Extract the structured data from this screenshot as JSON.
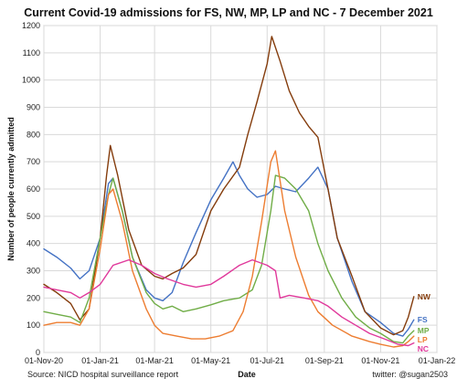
{
  "chart_data": {
    "type": "line",
    "title": "Current Covid-19 admissions for FS, NW, MP, LP and NC - 7 December 2021",
    "xlabel": "Date",
    "ylabel": "Number of people currently admitted",
    "ylim": [
      0,
      1200
    ],
    "yticks": [
      0,
      100,
      200,
      300,
      400,
      500,
      600,
      700,
      800,
      900,
      1000,
      1100,
      1200
    ],
    "xlim": [
      "2020-11-01",
      "2022-01-01"
    ],
    "xticks": [
      "2020-11-01",
      "2021-01-01",
      "2021-03-01",
      "2021-05-01",
      "2021-07-01",
      "2021-09-01",
      "2021-11-01",
      "2022-01-01"
    ],
    "xtick_labels": [
      "01-Nov-20",
      "01-Jan-21",
      "01-Mar-21",
      "01-May-21",
      "01-Jul-21",
      "01-Sep-21",
      "01-Nov-21",
      "01-Jan-22"
    ],
    "grid": true,
    "legend": "end-of-line labels",
    "series": [
      {
        "name": "FS",
        "color": "#4472C4",
        "points": [
          [
            "2020-11-01",
            380
          ],
          [
            "2020-11-15",
            350
          ],
          [
            "2020-11-30",
            310
          ],
          [
            "2020-12-10",
            270
          ],
          [
            "2020-12-20",
            300
          ],
          [
            "2021-01-01",
            420
          ],
          [
            "2021-01-10",
            620
          ],
          [
            "2021-01-15",
            640
          ],
          [
            "2021-01-25",
            520
          ],
          [
            "2021-02-05",
            350
          ],
          [
            "2021-02-20",
            230
          ],
          [
            "2021-03-01",
            200
          ],
          [
            "2021-03-10",
            190
          ],
          [
            "2021-03-20",
            220
          ],
          [
            "2021-04-01",
            330
          ],
          [
            "2021-04-15",
            440
          ],
          [
            "2021-05-01",
            560
          ],
          [
            "2021-05-15",
            640
          ],
          [
            "2021-05-25",
            700
          ],
          [
            "2021-06-01",
            650
          ],
          [
            "2021-06-10",
            600
          ],
          [
            "2021-06-20",
            570
          ],
          [
            "2021-07-01",
            580
          ],
          [
            "2021-07-10",
            610
          ],
          [
            "2021-07-20",
            600
          ],
          [
            "2021-08-01",
            590
          ],
          [
            "2021-08-15",
            640
          ],
          [
            "2021-08-25",
            680
          ],
          [
            "2021-09-05",
            600
          ],
          [
            "2021-09-15",
            420
          ],
          [
            "2021-10-01",
            260
          ],
          [
            "2021-10-15",
            150
          ],
          [
            "2021-11-01",
            110
          ],
          [
            "2021-11-15",
            70
          ],
          [
            "2021-11-25",
            60
          ],
          [
            "2021-12-01",
            85
          ],
          [
            "2021-12-07",
            120
          ]
        ]
      },
      {
        "name": "NW",
        "color": "#843C0C",
        "points": [
          [
            "2020-11-01",
            250
          ],
          [
            "2020-11-15",
            220
          ],
          [
            "2020-11-30",
            180
          ],
          [
            "2020-12-10",
            120
          ],
          [
            "2020-12-20",
            160
          ],
          [
            "2021-01-01",
            420
          ],
          [
            "2021-01-08",
            650
          ],
          [
            "2021-01-12",
            760
          ],
          [
            "2021-01-20",
            650
          ],
          [
            "2021-02-01",
            450
          ],
          [
            "2021-02-15",
            320
          ],
          [
            "2021-03-01",
            280
          ],
          [
            "2021-03-10",
            270
          ],
          [
            "2021-03-20",
            290
          ],
          [
            "2021-04-01",
            310
          ],
          [
            "2021-04-15",
            360
          ],
          [
            "2021-05-01",
            520
          ],
          [
            "2021-05-15",
            600
          ],
          [
            "2021-06-01",
            680
          ],
          [
            "2021-06-10",
            800
          ],
          [
            "2021-06-20",
            920
          ],
          [
            "2021-07-01",
            1060
          ],
          [
            "2021-07-06",
            1160
          ],
          [
            "2021-07-15",
            1070
          ],
          [
            "2021-07-25",
            960
          ],
          [
            "2021-08-05",
            880
          ],
          [
            "2021-08-15",
            830
          ],
          [
            "2021-08-25",
            790
          ],
          [
            "2021-09-05",
            600
          ],
          [
            "2021-09-15",
            420
          ],
          [
            "2021-10-01",
            280
          ],
          [
            "2021-10-15",
            150
          ],
          [
            "2021-11-01",
            90
          ],
          [
            "2021-11-15",
            65
          ],
          [
            "2021-11-25",
            80
          ],
          [
            "2021-12-01",
            130
          ],
          [
            "2021-12-07",
            205
          ]
        ]
      },
      {
        "name": "MP",
        "color": "#70AD47",
        "points": [
          [
            "2020-11-01",
            150
          ],
          [
            "2020-11-15",
            140
          ],
          [
            "2020-11-30",
            130
          ],
          [
            "2020-12-10",
            110
          ],
          [
            "2020-12-20",
            200
          ],
          [
            "2021-01-01",
            420
          ],
          [
            "2021-01-10",
            580
          ],
          [
            "2021-01-15",
            640
          ],
          [
            "2021-01-25",
            520
          ],
          [
            "2021-02-05",
            350
          ],
          [
            "2021-02-20",
            220
          ],
          [
            "2021-03-01",
            180
          ],
          [
            "2021-03-10",
            160
          ],
          [
            "2021-03-20",
            170
          ],
          [
            "2021-04-01",
            150
          ],
          [
            "2021-04-15",
            160
          ],
          [
            "2021-05-01",
            175
          ],
          [
            "2021-05-15",
            190
          ],
          [
            "2021-06-01",
            200
          ],
          [
            "2021-06-15",
            230
          ],
          [
            "2021-06-25",
            320
          ],
          [
            "2021-07-05",
            520
          ],
          [
            "2021-07-10",
            650
          ],
          [
            "2021-07-20",
            640
          ],
          [
            "2021-08-01",
            600
          ],
          [
            "2021-08-15",
            520
          ],
          [
            "2021-08-25",
            400
          ],
          [
            "2021-09-05",
            300
          ],
          [
            "2021-09-20",
            200
          ],
          [
            "2021-10-05",
            130
          ],
          [
            "2021-10-20",
            90
          ],
          [
            "2021-11-01",
            70
          ],
          [
            "2021-11-15",
            40
          ],
          [
            "2021-11-25",
            35
          ],
          [
            "2021-12-01",
            60
          ],
          [
            "2021-12-07",
            80
          ]
        ]
      },
      {
        "name": "LP",
        "color": "#ED7D31",
        "points": [
          [
            "2020-11-01",
            100
          ],
          [
            "2020-11-15",
            110
          ],
          [
            "2020-11-30",
            110
          ],
          [
            "2020-12-10",
            100
          ],
          [
            "2020-12-20",
            160
          ],
          [
            "2021-01-01",
            380
          ],
          [
            "2021-01-10",
            580
          ],
          [
            "2021-01-15",
            600
          ],
          [
            "2021-01-25",
            480
          ],
          [
            "2021-02-05",
            300
          ],
          [
            "2021-02-20",
            160
          ],
          [
            "2021-03-01",
            100
          ],
          [
            "2021-03-10",
            70
          ],
          [
            "2021-03-25",
            60
          ],
          [
            "2021-04-10",
            50
          ],
          [
            "2021-04-25",
            50
          ],
          [
            "2021-05-10",
            60
          ],
          [
            "2021-05-25",
            80
          ],
          [
            "2021-06-05",
            150
          ],
          [
            "2021-06-15",
            280
          ],
          [
            "2021-06-25",
            480
          ],
          [
            "2021-07-05",
            700
          ],
          [
            "2021-07-10",
            740
          ],
          [
            "2021-07-20",
            520
          ],
          [
            "2021-08-01",
            350
          ],
          [
            "2021-08-15",
            210
          ],
          [
            "2021-08-25",
            150
          ],
          [
            "2021-09-10",
            100
          ],
          [
            "2021-10-01",
            60
          ],
          [
            "2021-10-20",
            40
          ],
          [
            "2021-11-01",
            30
          ],
          [
            "2021-11-15",
            20
          ],
          [
            "2021-11-25",
            25
          ],
          [
            "2021-12-01",
            40
          ],
          [
            "2021-12-07",
            60
          ]
        ]
      },
      {
        "name": "NC",
        "color": "#E0399B",
        "points": [
          [
            "2020-11-01",
            240
          ],
          [
            "2020-11-15",
            230
          ],
          [
            "2020-11-30",
            220
          ],
          [
            "2020-12-10",
            200
          ],
          [
            "2020-12-20",
            220
          ],
          [
            "2021-01-01",
            250
          ],
          [
            "2021-01-15",
            320
          ],
          [
            "2021-02-01",
            340
          ],
          [
            "2021-02-15",
            320
          ],
          [
            "2021-03-01",
            290
          ],
          [
            "2021-03-15",
            270
          ],
          [
            "2021-04-01",
            250
          ],
          [
            "2021-04-15",
            240
          ],
          [
            "2021-05-01",
            250
          ],
          [
            "2021-05-15",
            280
          ],
          [
            "2021-06-01",
            320
          ],
          [
            "2021-06-15",
            340
          ],
          [
            "2021-07-01",
            320
          ],
          [
            "2021-07-10",
            300
          ],
          [
            "2021-07-15",
            200
          ],
          [
            "2021-07-25",
            210
          ],
          [
            "2021-08-10",
            200
          ],
          [
            "2021-08-25",
            190
          ],
          [
            "2021-09-05",
            170
          ],
          [
            "2021-09-20",
            130
          ],
          [
            "2021-10-05",
            100
          ],
          [
            "2021-10-20",
            70
          ],
          [
            "2021-11-05",
            50
          ],
          [
            "2021-11-20",
            30
          ],
          [
            "2021-12-01",
            25
          ],
          [
            "2021-12-07",
            35
          ]
        ]
      }
    ]
  },
  "footer": {
    "source": "Source: NICD hospital surveillance report",
    "credit": "twitter: @sugan2503"
  }
}
